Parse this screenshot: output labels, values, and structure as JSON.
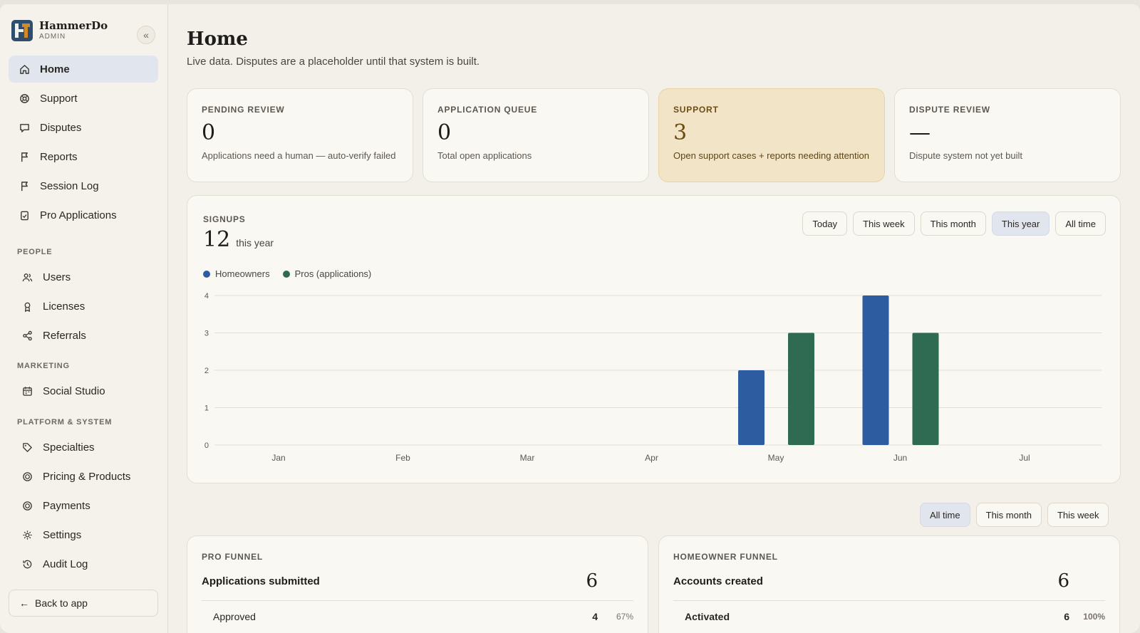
{
  "brand": {
    "name": "HammerDo",
    "role": "ADMIN"
  },
  "sidebar": {
    "collapse_icon": "«",
    "main_items": [
      {
        "label": "Home",
        "icon": "home-icon"
      },
      {
        "label": "Support",
        "icon": "lifebuoy-icon"
      },
      {
        "label": "Disputes",
        "icon": "chat-icon"
      },
      {
        "label": "Reports",
        "icon": "flag-icon"
      },
      {
        "label": "Session Log",
        "icon": "flag-icon"
      },
      {
        "label": "Pro Applications",
        "icon": "clipboard-check-icon"
      }
    ],
    "sections": {
      "people": "PEOPLE",
      "marketing": "MARKETING",
      "platform": "PLATFORM & SYSTEM"
    },
    "people_items": [
      {
        "label": "Users",
        "icon": "users-icon"
      },
      {
        "label": "Licenses",
        "icon": "award-icon"
      },
      {
        "label": "Referrals",
        "icon": "share-icon"
      }
    ],
    "marketing_items": [
      {
        "label": "Social Studio",
        "icon": "calendar-icon"
      }
    ],
    "platform_items": [
      {
        "label": "Specialties",
        "icon": "tag-icon"
      },
      {
        "label": "Pricing & Products",
        "icon": "coin-icon"
      },
      {
        "label": "Payments",
        "icon": "coin-icon"
      },
      {
        "label": "Settings",
        "icon": "gear-icon"
      },
      {
        "label": "Audit Log",
        "icon": "history-icon"
      }
    ],
    "back_label": "Back to app"
  },
  "header": {
    "title": "Home",
    "subtitle": "Live data. Disputes are a placeholder until that system is built."
  },
  "stats": [
    {
      "label": "PENDING REVIEW",
      "value": "0",
      "desc": "Applications need a human — auto-verify failed"
    },
    {
      "label": "APPLICATION QUEUE",
      "value": "0",
      "desc": "Total open applications"
    },
    {
      "label": "SUPPORT",
      "value": "3",
      "desc": "Open support cases + reports needing attention"
    },
    {
      "label": "DISPUTE REVIEW",
      "value": "—",
      "desc": "Dispute system not yet built"
    }
  ],
  "colors": {
    "homeowners": "#2d5ca1",
    "pros": "#2f6b52",
    "support_bg": "#f2e5c7"
  },
  "signups": {
    "label": "SIGNUPS",
    "count": "12",
    "period": "this year",
    "ranges": [
      "Today",
      "This week",
      "This month",
      "This year",
      "All time"
    ],
    "selected_range": "This year"
  },
  "chart_data": {
    "type": "bar",
    "categories": [
      "Jan",
      "Feb",
      "Mar",
      "Apr",
      "May",
      "Jun",
      "Jul"
    ],
    "series": [
      {
        "name": "Homeowners",
        "values": [
          0,
          0,
          0,
          0,
          2,
          4,
          0
        ]
      },
      {
        "name": "Pros (applications)",
        "values": [
          0,
          0,
          0,
          0,
          3,
          3,
          0
        ]
      }
    ],
    "yticks": [
      "0",
      "1",
      "2",
      "3",
      "4"
    ],
    "ylim": [
      0,
      4
    ],
    "grid": true,
    "legend": "top-left"
  },
  "funnel_ranges": {
    "options": [
      "All time",
      "This month",
      "This week"
    ],
    "selected": "All time"
  },
  "pro_funnel": {
    "label": "PRO FUNNEL",
    "head_title": "Applications submitted",
    "head_value": "6",
    "row": {
      "label": "Approved",
      "value": "4",
      "pct": "67%"
    }
  },
  "homeowner_funnel": {
    "label": "HOMEOWNER FUNNEL",
    "head_title": "Accounts created",
    "head_value": "6",
    "row": {
      "label": "Activated",
      "value": "6",
      "pct": "100%"
    }
  }
}
